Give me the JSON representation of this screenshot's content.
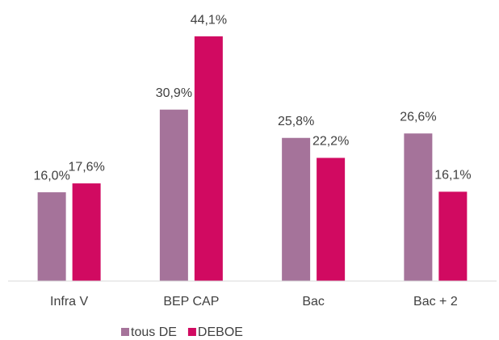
{
  "chart_data": {
    "type": "bar",
    "categories": [
      "Infra V",
      "BEP CAP",
      "Bac",
      "Bac + 2"
    ],
    "series": [
      {
        "name": "tous DE",
        "color": "#a5739a",
        "values": [
          16.0,
          30.9,
          25.8,
          26.6
        ],
        "value_labels": [
          "16,0%",
          "30,9%",
          "25,8%",
          "26,6%"
        ]
      },
      {
        "name": "DEBOE",
        "color": "#d10a61",
        "values": [
          17.6,
          44.1,
          22.2,
          16.1
        ],
        "value_labels": [
          "17,6%",
          "44,1%",
          "22,2%",
          "16,1%"
        ]
      }
    ],
    "ylim": [
      0,
      50
    ],
    "legend": "bottom"
  }
}
